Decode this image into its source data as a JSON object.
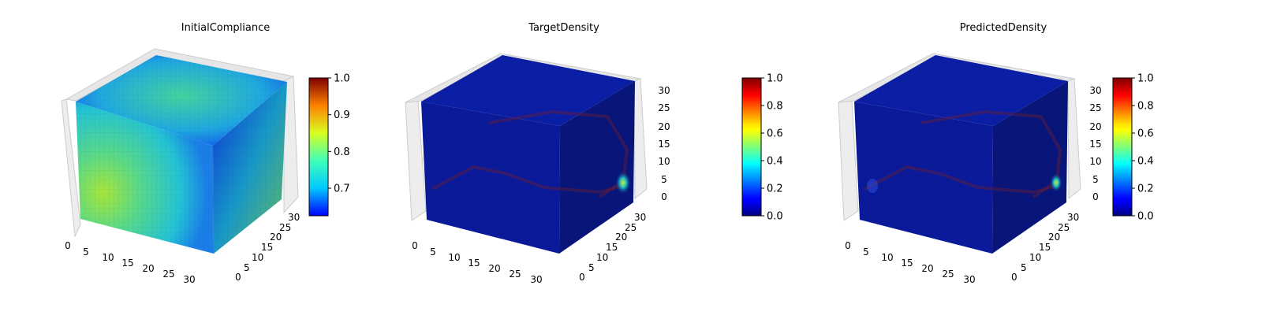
{
  "chart_data": [
    {
      "type": "voxel-3d",
      "title": "InitialCompliance",
      "colormap": "jet",
      "x_ticks": [
        "0",
        "5",
        "10",
        "15",
        "20",
        "25",
        "30"
      ],
      "y_ticks": [
        "0",
        "5",
        "10",
        "15",
        "20",
        "25",
        "30"
      ],
      "z_ticks": [],
      "xlim": [
        0,
        32
      ],
      "ylim": [
        0,
        32
      ],
      "zlim": [
        0,
        32
      ],
      "grid": true,
      "colorbar": {
        "range": [
          0.625,
          1.0
        ],
        "ticks": [
          "0.7",
          "0.8",
          "0.9",
          "1.0"
        ],
        "tick_values": [
          0.7,
          0.8,
          0.9,
          1.0
        ]
      }
    },
    {
      "type": "voxel-3d",
      "title": "TargetDensity",
      "colormap": "jet",
      "x_ticks": [
        "0",
        "5",
        "10",
        "15",
        "20",
        "25",
        "30"
      ],
      "y_ticks": [
        "0",
        "5",
        "10",
        "15",
        "20",
        "25",
        "30"
      ],
      "z_ticks": [
        "0",
        "5",
        "10",
        "15",
        "20",
        "25",
        "30"
      ],
      "xlim": [
        0,
        32
      ],
      "ylim": [
        0,
        32
      ],
      "zlim": [
        0,
        32
      ],
      "grid": true,
      "colorbar": {
        "range": [
          0.0,
          1.0
        ],
        "ticks": [
          "0.0",
          "0.2",
          "0.4",
          "0.6",
          "0.8",
          "1.0"
        ],
        "tick_values": [
          0.0,
          0.2,
          0.4,
          0.6,
          0.8,
          1.0
        ]
      }
    },
    {
      "type": "voxel-3d",
      "title": "PredictedDensity",
      "colormap": "jet",
      "x_ticks": [
        "0",
        "5",
        "10",
        "15",
        "20",
        "25",
        "30"
      ],
      "y_ticks": [
        "0",
        "5",
        "10",
        "15",
        "20",
        "25",
        "30"
      ],
      "z_ticks": [
        "0",
        "5",
        "10",
        "15",
        "20",
        "25",
        "30"
      ],
      "xlim": [
        0,
        32
      ],
      "ylim": [
        0,
        32
      ],
      "zlim": [
        0,
        32
      ],
      "grid": true,
      "colorbar": {
        "range": [
          0.0,
          1.0
        ],
        "ticks": [
          "0.0",
          "0.2",
          "0.4",
          "0.6",
          "0.8",
          "1.0"
        ],
        "tick_values": [
          0.0,
          0.2,
          0.4,
          0.6,
          0.8,
          1.0
        ]
      }
    }
  ]
}
